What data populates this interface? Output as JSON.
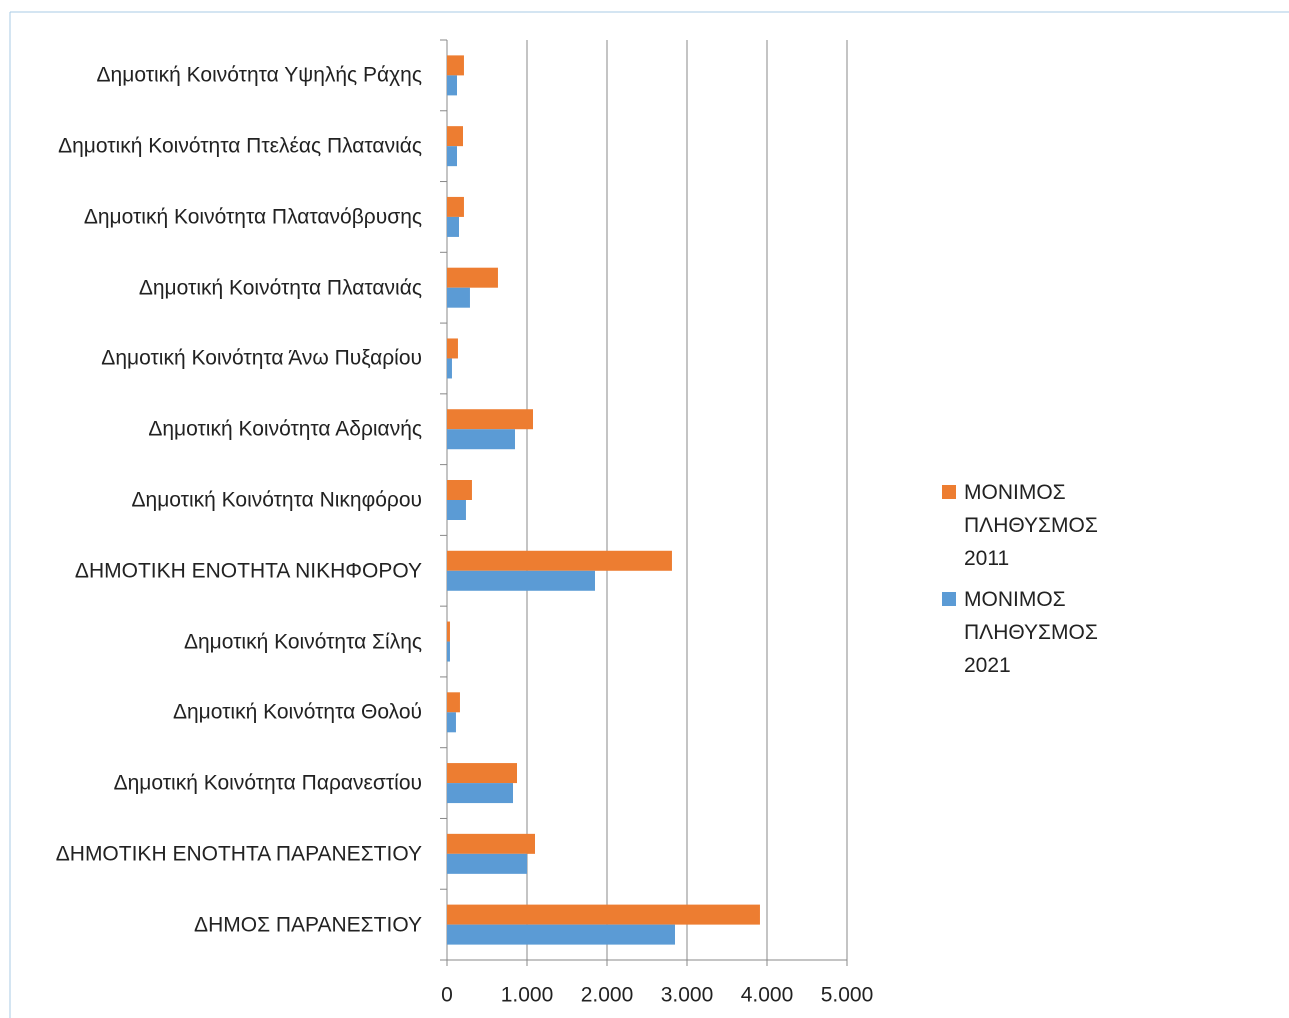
{
  "chart_data": {
    "type": "barh",
    "categories": [
      "Δημοτική Κοινότητα Υψηλής Ράχης",
      "Δημοτική Κοινότητα Πτελέας Πλατανιάς",
      "Δημοτική Κοινότητα Πλατανόβρυσης",
      "Δημοτική Κοινότητα Πλατανιάς",
      "Δημοτική Κοινότητα Άνω Πυξαρίου",
      "Δημοτική Κοινότητα Αδριανής",
      "Δημοτική Κοινότητα Νικηφόρου",
      "ΔΗΜΟΤΙΚΗ ΕΝΟΤΗΤΑ ΝΙΚΗΦΟΡΟΥ",
      "Δημοτική Κοινότητα Σίλης",
      "Δημοτική Κοινότητα Θολού",
      "Δημοτική Κοινότητα Παρανεστίου",
      "ΔΗΜΟΤΙΚΗ ΕΝΟΤΗΤΑ ΠΑΡΑΝΕΣΤΙΟΥ",
      "ΔΗΜΟΣ ΠΑΡΑΝΕΣΤΙΟΥ"
    ],
    "series": [
      {
        "name": "ΜΟΝΙΜΟΣ ΠΛΗΘΥΣΜΟΣ 2011",
        "color": "#ed7d31",
        "values": [
          212,
          200,
          212,
          637,
          137,
          1075,
          312,
          2812,
          37,
          162,
          875,
          1100,
          3912
        ]
      },
      {
        "name": "ΜΟΝΙΜΟΣ ΠΛΗΘΥΣΜΟΣ 2021",
        "color": "#5b9bd5",
        "values": [
          125,
          125,
          150,
          287,
          62,
          850,
          237,
          1850,
          37,
          112,
          825,
          1000,
          2850
        ]
      }
    ],
    "xlim": [
      0,
      5000
    ],
    "xticks": [
      0,
      {
        "value": 1000,
        "label": "1.000"
      },
      {
        "value": 2000,
        "label": "2.000"
      },
      {
        "value": 3000,
        "label": "3.000"
      },
      {
        "value": 4000,
        "label": "4.000"
      },
      {
        "value": 5000,
        "label": "5.000"
      }
    ],
    "grid": true,
    "legend": "right"
  }
}
